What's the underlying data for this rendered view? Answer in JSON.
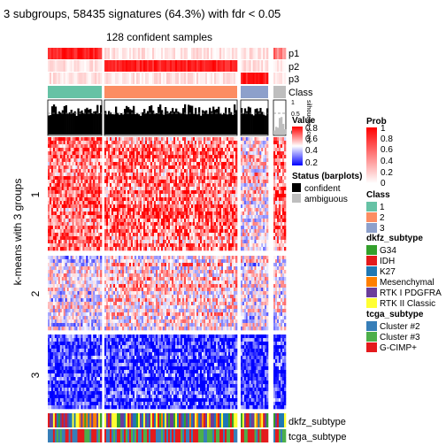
{
  "chart_data": {
    "type": "heatmap",
    "title": "3 subgroups, 58435 signatures (64.3%) with fdr < 0.05",
    "subtitle": "128 confident samples",
    "row_title": "k-means with 3 groups",
    "row_groups": [
      "1",
      "2",
      "3"
    ],
    "column_annotations_top": [
      "p1",
      "p2",
      "p3",
      "Class"
    ],
    "barplot_axis_ticks": [
      "1",
      "0.5",
      "0"
    ],
    "barplot_label": "silhouette score",
    "column_annotations_bottom": [
      "dkfz_subtype",
      "tcga_subtype"
    ],
    "color_scale": {
      "title": "Value",
      "range": [
        0.2,
        0.8
      ],
      "ticks": [
        "0.8",
        "0.6",
        "0.4",
        "0.2"
      ],
      "colors": {
        "high": "#ff0000",
        "mid": "#ffffff",
        "low": "#0000ff"
      }
    },
    "legends": {
      "prob": {
        "title": "Prob",
        "ticks": [
          "1",
          "0.8",
          "0.6",
          "0.4",
          "0.2",
          "0"
        ],
        "colors": {
          "high": "#ff0000",
          "low": "#ffffff"
        }
      },
      "status": {
        "title": "Status (barplots)",
        "items": [
          {
            "label": "confident",
            "color": "#000000"
          },
          {
            "label": "ambiguous",
            "color": "#bebebe"
          }
        ]
      },
      "class": {
        "title": "Class",
        "items": [
          {
            "label": "1",
            "color": "#66c2a5"
          },
          {
            "label": "2",
            "color": "#fc8d62"
          },
          {
            "label": "3",
            "color": "#8da0cb"
          }
        ]
      },
      "dkfz_subtype": {
        "title": "dkfz_subtype",
        "items": [
          {
            "label": "G34",
            "color": "#33a02c"
          },
          {
            "label": "IDH",
            "color": "#e31a1c"
          },
          {
            "label": "K27",
            "color": "#1f78b4"
          },
          {
            "label": "Mesenchymal",
            "color": "#ff7f00"
          },
          {
            "label": "RTK I PDGFRA",
            "color": "#6a3d9a"
          },
          {
            "label": "RTK II Classic",
            "color": "#ffff33"
          }
        ]
      },
      "tcga_subtype": {
        "title": "tcga_subtype",
        "items": [
          {
            "label": "Cluster #2",
            "color": "#377eb8"
          },
          {
            "label": "Cluster #3",
            "color": "#4daf4a"
          },
          {
            "label": "G-CIMP+",
            "color": "#e41a1c"
          }
        ]
      }
    }
  }
}
